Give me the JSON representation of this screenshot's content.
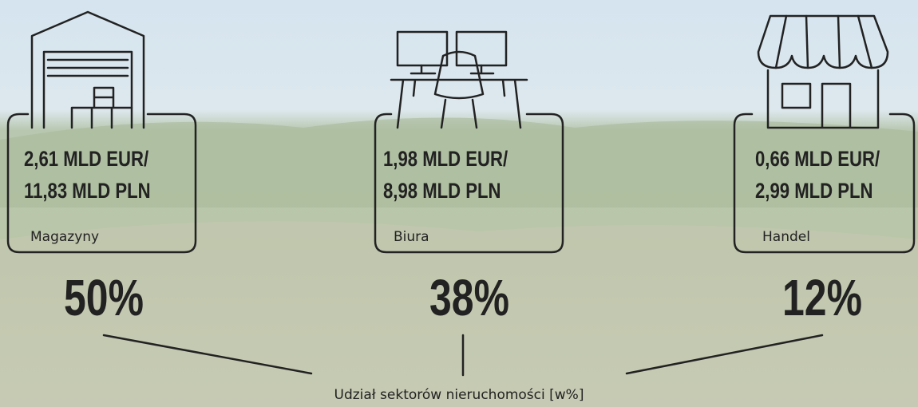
{
  "sectors": [
    {
      "amount_eur": "2,61 MLD EUR/",
      "amount_pln": "11,83 MLD PLN",
      "label": "Magazyny",
      "share": "50%"
    },
    {
      "amount_eur": "1,98 MLD EUR/",
      "amount_pln": "8,98 MLD PLN",
      "label": "Biura",
      "share": "38%"
    },
    {
      "amount_eur": "0,66 MLD EUR/",
      "amount_pln": "2,99 MLD PLN",
      "label": "Handel",
      "share": "12%"
    }
  ],
  "caption": "Udział sektorów nieruchomości [w%]"
}
